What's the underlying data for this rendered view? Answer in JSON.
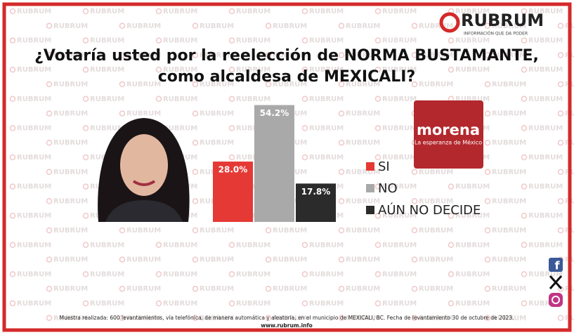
{
  "watermark": "RUBRUM",
  "brand": {
    "name": "RUBRUM",
    "tagline": "INFORMACIÓN QUE DA PODER"
  },
  "party": {
    "name": "morena",
    "tagline": "La esperanza de México"
  },
  "chart_data": {
    "type": "bar",
    "title": "¿Votaría usted por la reelección de NORMA BUSTAMANTE,",
    "subtitle": "como alcaldesa de MEXICALI?",
    "categories": [
      "SI",
      "NO",
      "AÚN NO DECIDE"
    ],
    "values": [
      28.0,
      54.2,
      17.8
    ],
    "value_labels": [
      "28.0%",
      "54.2%",
      "17.8%"
    ],
    "colors": [
      "#e53935",
      "#a9a9a9",
      "#2b2b2b"
    ]
  },
  "footer": {
    "note": "Muestra realizada: 600 levantamientos, vía telefónica, de manera automática y aleatoria, en el municipio de MEXICALI, BC. Fecha de levantamiento 30 de octubre de 2023.",
    "url": "www.rubrum.info"
  }
}
